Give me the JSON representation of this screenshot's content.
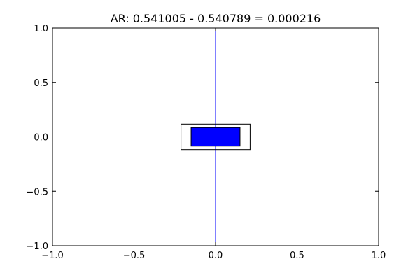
{
  "chart_data": {
    "type": "diagram",
    "title": "AR:  0.541005 - 0.540789 = 0.000216",
    "xlim": [
      -1.0,
      1.0
    ],
    "ylim": [
      -1.0,
      1.0
    ],
    "xticks": [
      -1.0,
      -0.5,
      0.0,
      0.5,
      1.0
    ],
    "yticks": [
      -1.0,
      -0.5,
      0.0,
      0.5,
      1.0
    ],
    "xtick_labels": [
      "−1.0",
      "−0.5",
      "0.0",
      "0.5",
      "1.0"
    ],
    "ytick_labels": [
      "−1.0",
      "−0.5",
      "0.0",
      "0.5",
      "1.0"
    ],
    "grid": false,
    "axis_lines": [
      {
        "name": "horizontal-axis-line",
        "orientation": "horizontal",
        "value": 0.0,
        "color": "#0000ff"
      },
      {
        "name": "vertical-axis-line",
        "orientation": "vertical",
        "value": 0.0,
        "color": "#0000ff"
      }
    ],
    "rectangles": [
      {
        "name": "outer-rectangle",
        "x0": -0.212,
        "x1": 0.212,
        "y0": -0.117,
        "y1": 0.117,
        "fill": "none",
        "stroke": "#000000"
      },
      {
        "name": "inner-rectangle",
        "x0": -0.15,
        "x1": 0.15,
        "y0": -0.085,
        "y1": 0.085,
        "fill": "#0000ff",
        "stroke": "#000000"
      }
    ]
  }
}
